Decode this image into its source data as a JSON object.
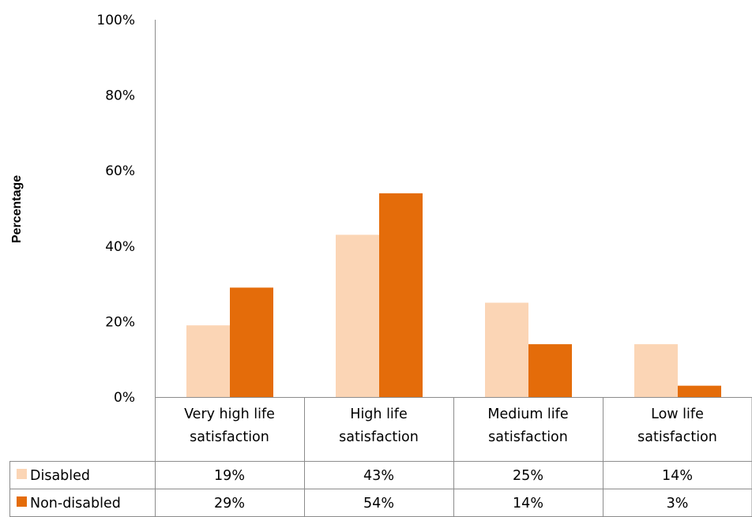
{
  "chart_data": {
    "type": "bar",
    "ylabel": "Percentage",
    "ylim": [
      0,
      100
    ],
    "yticks": [
      "0%",
      "20%",
      "40%",
      "60%",
      "80%",
      "100%"
    ],
    "categories": [
      [
        "Very high life",
        "satisfaction"
      ],
      [
        "High life",
        "satisfaction"
      ],
      [
        "Medium life",
        "satisfaction"
      ],
      [
        "Low life",
        "satisfaction"
      ]
    ],
    "series": [
      {
        "name": "Disabled",
        "color": "#fbd5b5",
        "values": [
          19,
          43,
          25,
          14
        ],
        "labels": [
          "19%",
          "43%",
          "25%",
          "14%"
        ]
      },
      {
        "name": "Non-disabled",
        "color": "#e46c0a",
        "values": [
          29,
          54,
          14,
          3
        ],
        "labels": [
          "29%",
          "54%",
          "14%",
          "3%"
        ]
      }
    ],
    "grid": false,
    "legend": "data-table"
  }
}
